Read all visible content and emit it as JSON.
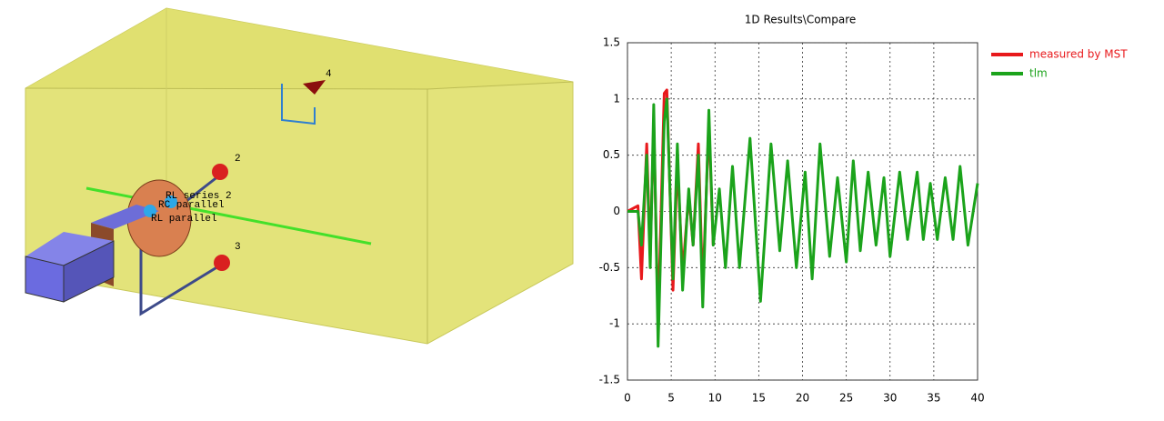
{
  "scene": {
    "ports": [
      "2",
      "3",
      "4"
    ],
    "components": [
      "RL series 2",
      "RC parallel",
      "RL parallel"
    ]
  },
  "chart_data": {
    "type": "line",
    "title": "1D Results\\Compare",
    "x": [
      0,
      1.2,
      1.6,
      2.2,
      2.6,
      3.0,
      3.5,
      4.2,
      4.5,
      5.2,
      5.7,
      6.3,
      7.0,
      7.5,
      8.1,
      8.6,
      9.3,
      9.8,
      10.5,
      11.2,
      12.0,
      12.8,
      14.0,
      15.2,
      16.4,
      17.4,
      18.3,
      19.3,
      20.3,
      21.1,
      22.0,
      23.1,
      24.0,
      25.0,
      25.8,
      26.6,
      27.5,
      28.4,
      29.3,
      30.0,
      31.1,
      32.0,
      33.1,
      33.8,
      34.6,
      35.4,
      36.3,
      37.2,
      38.0,
      38.9,
      40
    ],
    "series": [
      {
        "name": "measured by MST",
        "color": "#e8191c",
        "values": [
          0,
          0.05,
          -0.6,
          0.6,
          -0.4,
          0.8,
          -1.0,
          1.05,
          1.08,
          -0.7,
          0.45,
          -0.55,
          0.15,
          -0.3,
          0.6,
          -0.7,
          0.8,
          -0.3,
          null,
          null,
          null,
          null,
          null,
          null,
          null,
          null,
          null,
          null,
          null,
          null,
          null,
          null,
          null,
          null,
          null,
          null,
          null,
          null,
          null,
          null,
          null,
          null,
          null,
          null,
          null,
          null,
          null,
          null,
          null,
          null,
          null
        ]
      },
      {
        "name": "tlm",
        "color": "#1ba31b",
        "values": [
          0,
          0,
          -0.3,
          0.5,
          -0.5,
          0.95,
          -1.2,
          0.8,
          1.0,
          -0.6,
          0.6,
          -0.7,
          0.2,
          -0.3,
          0.5,
          -0.85,
          0.9,
          -0.3,
          0.2,
          -0.5,
          0.4,
          -0.5,
          0.65,
          -0.8,
          0.6,
          -0.35,
          0.45,
          -0.5,
          0.35,
          -0.6,
          0.6,
          -0.4,
          0.3,
          -0.45,
          0.45,
          -0.35,
          0.35,
          -0.3,
          0.3,
          -0.4,
          0.35,
          -0.25,
          0.35,
          -0.25,
          0.25,
          -0.25,
          0.3,
          -0.25,
          0.4,
          -0.3,
          0.25
        ]
      }
    ],
    "xlim": [
      0,
      40
    ],
    "xticks": [
      0,
      5,
      10,
      15,
      20,
      25,
      30,
      35,
      40
    ],
    "ylim": [
      -1.5,
      1.5
    ],
    "yticks": [
      1.5,
      1,
      0.5,
      0,
      -0.5,
      -1,
      -1.5
    ],
    "grid": true,
    "legend": "outside-right"
  }
}
